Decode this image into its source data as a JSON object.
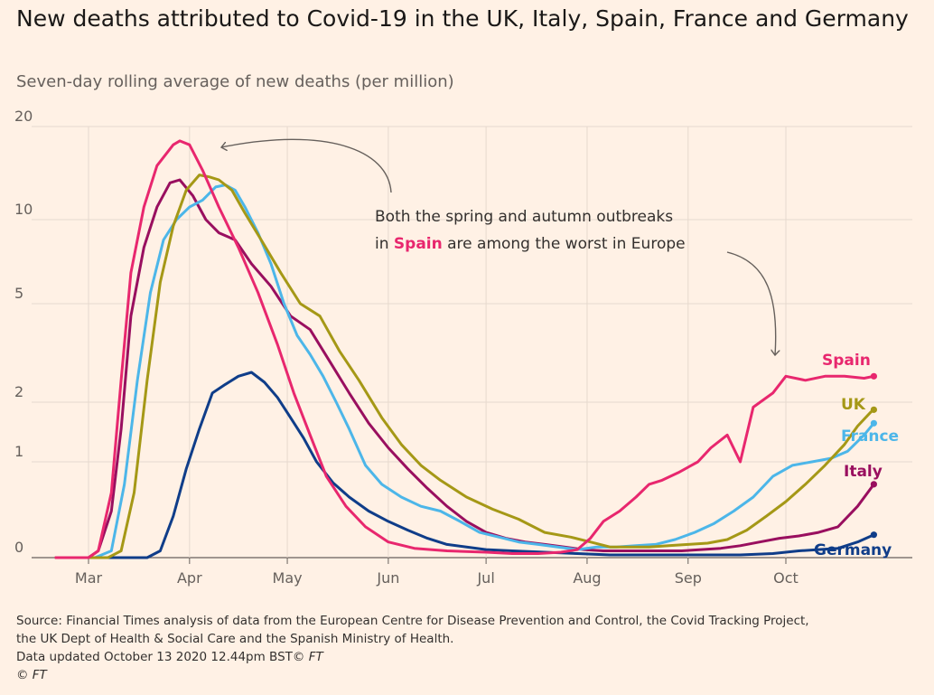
{
  "header": {
    "title": "New deaths attributed to Covid-19 in the UK, Italy, Spain, France and Germany",
    "subtitle": "Seven-day rolling average of new deaths (per million)"
  },
  "annotation": {
    "line1": "Both the spring and autumn outbreaks",
    "line2_pre": "in ",
    "line2_hl": "Spain",
    "line2_post": " are among the worst in Europe"
  },
  "footer": {
    "source_line1": "Source: Financial Times analysis of data from the European Centre for Disease Prevention and Control, the Covid Tracking Project,",
    "source_line2": "the UK Dept of Health & Social Care and the Spanish Ministry of Health.",
    "updated_prefix": "Data updated October 13 2020 12.44pm BST© ",
    "updated_ft": "FT",
    "copyright": "© FT"
  },
  "chart_data": {
    "type": "line",
    "title": "New deaths attributed to Covid-19 in the UK, Italy, Spain, France and Germany",
    "subtitle": "Seven-day rolling average of new deaths (per million)",
    "y_scale": "log-like",
    "y_ticks": [
      0,
      1,
      2,
      5,
      10,
      20
    ],
    "y_tick_labels": [
      "0",
      "1",
      "2",
      "5",
      "10",
      "20"
    ],
    "x_tick_labels": [
      "Mar",
      "Apr",
      "May",
      "Jun",
      "Jul",
      "Aug",
      "Sep",
      "Oct"
    ],
    "x_tick_days": [
      0,
      31,
      61,
      92,
      122,
      153,
      184,
      214
    ],
    "grid": true,
    "x_axis_start": "2020-02-20",
    "series": [
      {
        "name": "Spain",
        "color": "#e8276e",
        "points": [
          [
            -10,
            0
          ],
          [
            0,
            0
          ],
          [
            3,
            0.05
          ],
          [
            7,
            0.6
          ],
          [
            10,
            2.5
          ],
          [
            13,
            6.5
          ],
          [
            17,
            11
          ],
          [
            21,
            15
          ],
          [
            26,
            17.5
          ],
          [
            28,
            18
          ],
          [
            31,
            17.5
          ],
          [
            35,
            14.5
          ],
          [
            40,
            11
          ],
          [
            46,
            8
          ],
          [
            52,
            5.5
          ],
          [
            58,
            3.5
          ],
          [
            63,
            2.2
          ],
          [
            68,
            1.4
          ],
          [
            73,
            0.8
          ],
          [
            79,
            0.45
          ],
          [
            85,
            0.25
          ],
          [
            92,
            0.12
          ],
          [
            100,
            0.07
          ],
          [
            110,
            0.05
          ],
          [
            122,
            0.04
          ],
          [
            130,
            0.03
          ],
          [
            138,
            0.03
          ],
          [
            145,
            0.04
          ],
          [
            150,
            0.06
          ],
          [
            154,
            0.15
          ],
          [
            158,
            0.3
          ],
          [
            163,
            0.4
          ],
          [
            168,
            0.55
          ],
          [
            172,
            0.7
          ],
          [
            176,
            0.75
          ],
          [
            181,
            0.85
          ],
          [
            187,
            1.0
          ],
          [
            191,
            1.2
          ],
          [
            196,
            1.4
          ],
          [
            200,
            1.0
          ],
          [
            204,
            1.9
          ],
          [
            210,
            2.2
          ],
          [
            214,
            2.6
          ],
          [
            220,
            2.5
          ],
          [
            226,
            2.6
          ],
          [
            232,
            2.6
          ],
          [
            238,
            2.55
          ],
          [
            241,
            2.6
          ]
        ]
      },
      {
        "name": "UK",
        "color": "#a59816",
        "points": [
          [
            -10,
            0
          ],
          [
            6,
            0
          ],
          [
            10,
            0.05
          ],
          [
            14,
            0.6
          ],
          [
            18,
            2.5
          ],
          [
            22,
            6
          ],
          [
            26,
            9.5
          ],
          [
            30,
            12.5
          ],
          [
            34,
            14
          ],
          [
            37,
            13.8
          ],
          [
            40,
            13.5
          ],
          [
            44,
            12.5
          ],
          [
            48,
            10.5
          ],
          [
            53,
            8.5
          ],
          [
            59,
            6.5
          ],
          [
            65,
            5.0
          ],
          [
            71,
            4.5
          ],
          [
            77,
            3.3
          ],
          [
            83,
            2.5
          ],
          [
            90,
            1.7
          ],
          [
            96,
            1.25
          ],
          [
            102,
            0.95
          ],
          [
            108,
            0.75
          ],
          [
            116,
            0.55
          ],
          [
            124,
            0.42
          ],
          [
            132,
            0.32
          ],
          [
            140,
            0.2
          ],
          [
            148,
            0.16
          ],
          [
            154,
            0.12
          ],
          [
            160,
            0.08
          ],
          [
            166,
            0.08
          ],
          [
            172,
            0.08
          ],
          [
            178,
            0.09
          ],
          [
            184,
            0.1
          ],
          [
            190,
            0.11
          ],
          [
            196,
            0.14
          ],
          [
            202,
            0.22
          ],
          [
            208,
            0.35
          ],
          [
            214,
            0.5
          ],
          [
            220,
            0.7
          ],
          [
            226,
            0.95
          ],
          [
            232,
            1.25
          ],
          [
            236,
            1.55
          ],
          [
            240,
            1.8
          ],
          [
            241,
            1.85
          ]
        ]
      },
      {
        "name": "France",
        "color": "#4cb6e9",
        "points": [
          [
            -10,
            0
          ],
          [
            2,
            0
          ],
          [
            7,
            0.05
          ],
          [
            11,
            0.7
          ],
          [
            15,
            2.5
          ],
          [
            19,
            5.5
          ],
          [
            23,
            8.5
          ],
          [
            27,
            10
          ],
          [
            31,
            11
          ],
          [
            35,
            11.6
          ],
          [
            39,
            12.8
          ],
          [
            42,
            13
          ],
          [
            45,
            12.5
          ],
          [
            48,
            11
          ],
          [
            52,
            9
          ],
          [
            56,
            7
          ],
          [
            60,
            5
          ],
          [
            64,
            3.8
          ],
          [
            68,
            3.2
          ],
          [
            72,
            2.6
          ],
          [
            76,
            2.0
          ],
          [
            80,
            1.5
          ],
          [
            85,
            0.95
          ],
          [
            90,
            0.7
          ],
          [
            96,
            0.55
          ],
          [
            102,
            0.45
          ],
          [
            108,
            0.4
          ],
          [
            114,
            0.3
          ],
          [
            120,
            0.2
          ],
          [
            126,
            0.16
          ],
          [
            132,
            0.12
          ],
          [
            138,
            0.1
          ],
          [
            144,
            0.08
          ],
          [
            150,
            0.06
          ],
          [
            156,
            0.08
          ],
          [
            162,
            0.08
          ],
          [
            168,
            0.09
          ],
          [
            174,
            0.1
          ],
          [
            180,
            0.14
          ],
          [
            186,
            0.2
          ],
          [
            192,
            0.28
          ],
          [
            198,
            0.4
          ],
          [
            204,
            0.55
          ],
          [
            210,
            0.8
          ],
          [
            216,
            0.95
          ],
          [
            222,
            1.0
          ],
          [
            228,
            1.05
          ],
          [
            233,
            1.15
          ],
          [
            238,
            1.4
          ],
          [
            241,
            1.6
          ]
        ]
      },
      {
        "name": "Italy",
        "color": "#990f5f",
        "points": [
          [
            -10,
            0
          ],
          [
            0,
            0
          ],
          [
            3,
            0.05
          ],
          [
            7,
            0.4
          ],
          [
            10,
            1.5
          ],
          [
            13,
            4.5
          ],
          [
            17,
            8
          ],
          [
            21,
            11
          ],
          [
            25,
            13.2
          ],
          [
            28,
            13.5
          ],
          [
            32,
            12
          ],
          [
            36,
            10
          ],
          [
            40,
            9
          ],
          [
            45,
            8.5
          ],
          [
            50,
            7
          ],
          [
            56,
            5.8
          ],
          [
            62,
            4.5
          ],
          [
            68,
            4.0
          ],
          [
            74,
            3.0
          ],
          [
            80,
            2.2
          ],
          [
            86,
            1.6
          ],
          [
            92,
            1.2
          ],
          [
            98,
            0.9
          ],
          [
            104,
            0.65
          ],
          [
            110,
            0.45
          ],
          [
            116,
            0.3
          ],
          [
            122,
            0.2
          ],
          [
            128,
            0.15
          ],
          [
            134,
            0.12
          ],
          [
            140,
            0.1
          ],
          [
            146,
            0.08
          ],
          [
            152,
            0.06
          ],
          [
            158,
            0.05
          ],
          [
            164,
            0.05
          ],
          [
            170,
            0.05
          ],
          [
            176,
            0.05
          ],
          [
            182,
            0.05
          ],
          [
            188,
            0.06
          ],
          [
            194,
            0.07
          ],
          [
            200,
            0.09
          ],
          [
            206,
            0.12
          ],
          [
            212,
            0.15
          ],
          [
            218,
            0.17
          ],
          [
            224,
            0.2
          ],
          [
            230,
            0.25
          ],
          [
            236,
            0.45
          ],
          [
            241,
            0.7
          ]
        ]
      },
      {
        "name": "Germany",
        "color": "#0f3d89",
        "points": [
          [
            -10,
            0
          ],
          [
            18,
            0
          ],
          [
            22,
            0.05
          ],
          [
            26,
            0.35
          ],
          [
            30,
            0.9
          ],
          [
            34,
            1.5
          ],
          [
            38,
            2.2
          ],
          [
            42,
            2.4
          ],
          [
            46,
            2.6
          ],
          [
            50,
            2.7
          ],
          [
            54,
            2.45
          ],
          [
            58,
            2.1
          ],
          [
            62,
            1.7
          ],
          [
            66,
            1.35
          ],
          [
            70,
            1.0
          ],
          [
            75,
            0.72
          ],
          [
            80,
            0.55
          ],
          [
            86,
            0.4
          ],
          [
            92,
            0.3
          ],
          [
            98,
            0.22
          ],
          [
            104,
            0.15
          ],
          [
            110,
            0.1
          ],
          [
            116,
            0.08
          ],
          [
            122,
            0.06
          ],
          [
            130,
            0.05
          ],
          [
            140,
            0.04
          ],
          [
            150,
            0.03
          ],
          [
            160,
            0.02
          ],
          [
            170,
            0.02
          ],
          [
            180,
            0.02
          ],
          [
            190,
            0.02
          ],
          [
            200,
            0.02
          ],
          [
            210,
            0.03
          ],
          [
            218,
            0.05
          ],
          [
            224,
            0.06
          ],
          [
            230,
            0.07
          ],
          [
            236,
            0.12
          ],
          [
            241,
            0.18
          ]
        ]
      }
    ]
  },
  "labels": {
    "spain": "Spain",
    "uk": "UK",
    "france": "France",
    "italy": "Italy",
    "germany": "Germany"
  }
}
